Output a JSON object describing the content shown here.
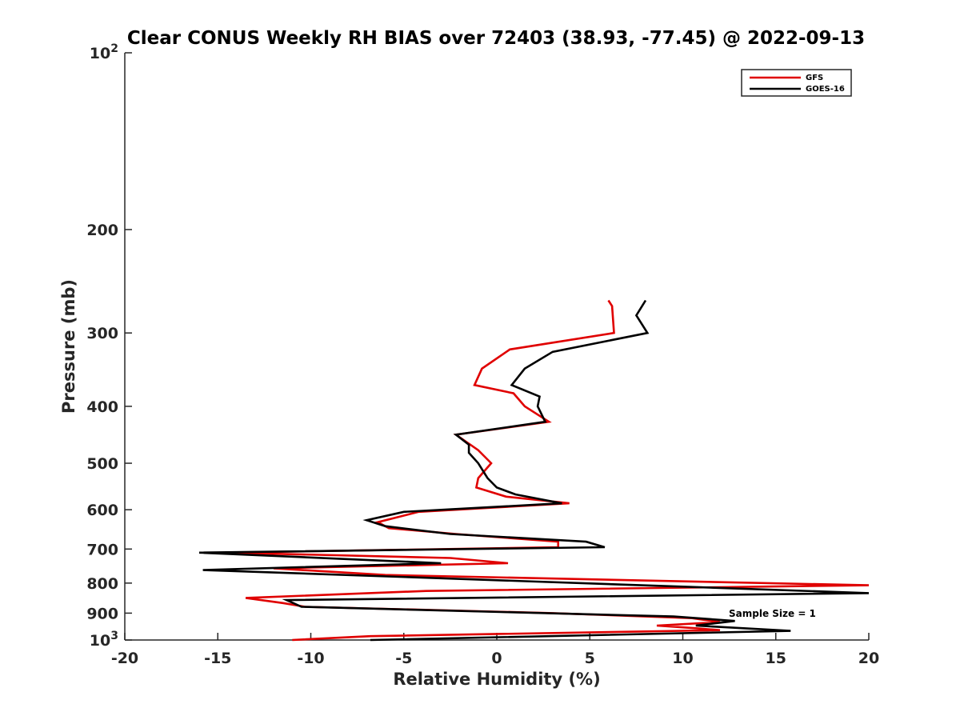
{
  "chart_data": {
    "type": "line",
    "title": "Clear CONUS Weekly RH BIAS over 72403 (38.93, -77.45) @ 2022-09-13",
    "xlabel": "Relative Humidity (%)",
    "ylabel": "Pressure (mb)",
    "xlim": [
      -20,
      20
    ],
    "ylim": [
      100,
      1000
    ],
    "y_scale": "log",
    "y_reversed": true,
    "x_ticks": [
      "-20",
      "-15",
      "-10",
      "-5",
      "0",
      "5",
      "10",
      "15",
      "20"
    ],
    "y_ticks": [
      {
        "value": 100,
        "base": "10",
        "exp": "2"
      },
      {
        "value": 200,
        "label": "200"
      },
      {
        "value": 300,
        "label": "300"
      },
      {
        "value": 400,
        "label": "400"
      },
      {
        "value": 500,
        "label": "500"
      },
      {
        "value": 600,
        "label": "600"
      },
      {
        "value": 700,
        "label": "700"
      },
      {
        "value": 800,
        "label": "800"
      },
      {
        "value": 900,
        "label": "900"
      },
      {
        "value": 1000,
        "base": "10",
        "exp": "3"
      }
    ],
    "grid": false,
    "legend_position": "top-right",
    "annotation": "Sample Size = 1",
    "series": [
      {
        "name": "GFS",
        "color": "#e00000",
        "points": [
          [
            6.0,
            264
          ],
          [
            6.2,
            270
          ],
          [
            6.3,
            300
          ],
          [
            0.7,
            320
          ],
          [
            -0.8,
            345
          ],
          [
            -1.2,
            368
          ],
          [
            0.9,
            380
          ],
          [
            1.5,
            400
          ],
          [
            2.8,
            425
          ],
          [
            -2.2,
            447
          ],
          [
            -1.0,
            475
          ],
          [
            -0.3,
            500
          ],
          [
            -1.0,
            530
          ],
          [
            -1.1,
            550
          ],
          [
            0.5,
            570
          ],
          [
            3.9,
            585
          ],
          [
            -4.2,
            605
          ],
          [
            -6.4,
            630
          ],
          [
            -5.8,
            645
          ],
          [
            -2.2,
            660
          ],
          [
            3.3,
            680
          ],
          [
            3.3,
            695
          ],
          [
            -14.5,
            710
          ],
          [
            -2.5,
            725
          ],
          [
            0.6,
            740
          ],
          [
            -12.0,
            755
          ],
          [
            -6.0,
            775
          ],
          [
            20.0,
            807
          ],
          [
            -3.8,
            825
          ],
          [
            -13.5,
            848
          ],
          [
            -11.5,
            865
          ],
          [
            -10.3,
            878
          ],
          [
            3.0,
            900
          ],
          [
            10.5,
            918
          ],
          [
            12.0,
            932
          ],
          [
            8.6,
            945
          ],
          [
            10.7,
            955
          ],
          [
            12.0,
            962
          ],
          [
            -6.8,
            985
          ],
          [
            -11.0,
            1000
          ]
        ]
      },
      {
        "name": "GOES-16",
        "color": "#000000",
        "points": [
          [
            8.0,
            264
          ],
          [
            7.5,
            280
          ],
          [
            8.1,
            300
          ],
          [
            3.0,
            323
          ],
          [
            1.5,
            345
          ],
          [
            0.8,
            368
          ],
          [
            2.3,
            385
          ],
          [
            2.2,
            400
          ],
          [
            2.6,
            425
          ],
          [
            -2.2,
            447
          ],
          [
            -1.5,
            465
          ],
          [
            -1.5,
            480
          ],
          [
            -1.0,
            500
          ],
          [
            -0.5,
            530
          ],
          [
            0.0,
            550
          ],
          [
            1.0,
            565
          ],
          [
            3.5,
            585
          ],
          [
            -5.0,
            605
          ],
          [
            -7.0,
            625
          ],
          [
            -6.0,
            640
          ],
          [
            -2.5,
            660
          ],
          [
            4.8,
            680
          ],
          [
            5.8,
            695
          ],
          [
            -16.0,
            710
          ],
          [
            -3.0,
            740
          ],
          [
            -15.8,
            760
          ],
          [
            20.0,
            832
          ],
          [
            -11.3,
            855
          ],
          [
            -10.5,
            878
          ],
          [
            9.5,
            912
          ],
          [
            12.8,
            928
          ],
          [
            10.7,
            945
          ],
          [
            15.8,
            965
          ],
          [
            -6.8,
            1000
          ]
        ]
      }
    ]
  }
}
